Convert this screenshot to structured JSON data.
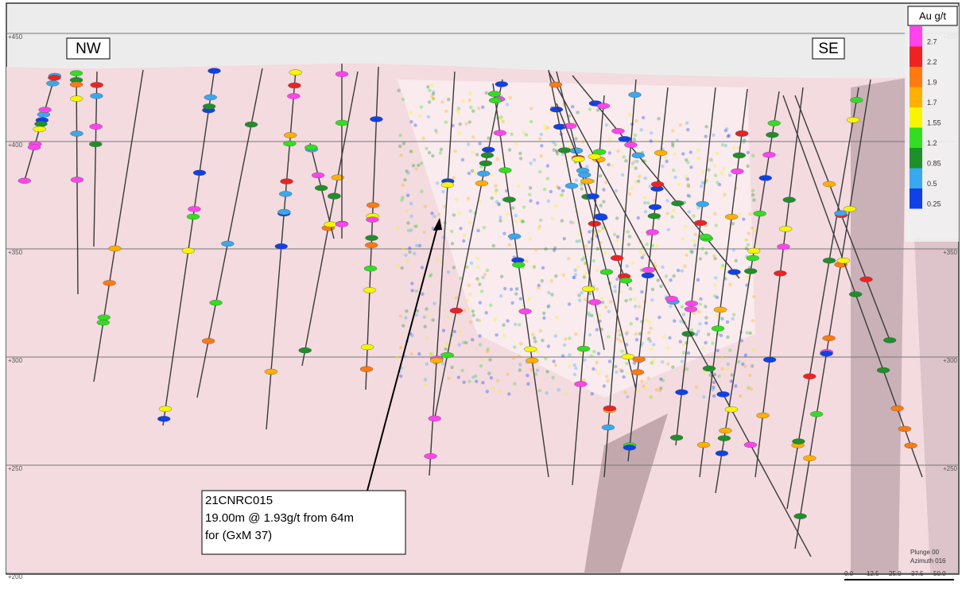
{
  "labels": {
    "nw": "NW",
    "se": "SE"
  },
  "elevations_left": [
    "+450",
    "+400",
    "+350",
    "+300",
    "+250",
    "+200"
  ],
  "elevations_right": [
    "+450",
    "+350",
    "+300",
    "+250"
  ],
  "legend": {
    "title": "Au g/t",
    "items": [
      {
        "label": "2.7",
        "color": "#ff44ee"
      },
      {
        "label": "2.2",
        "color": "#ee2222"
      },
      {
        "label": "1.9",
        "color": "#ff7a10"
      },
      {
        "label": "1.7",
        "color": "#ffb000"
      },
      {
        "label": "1.55",
        "color": "#f6f600"
      },
      {
        "label": "1.2",
        "color": "#33dd22"
      },
      {
        "label": "0.85",
        "color": "#1f8f2a"
      },
      {
        "label": "0.5",
        "color": "#3aa8ee"
      },
      {
        "label": "0.25",
        "color": "#1040e8"
      }
    ]
  },
  "annotation": {
    "lines": [
      "21CNRC015",
      "19.00m @ 1.93g/t from 64m",
      "for (GxM 37)"
    ]
  },
  "view": {
    "plunge": "Plunge 00",
    "azimuth": "Azimuth 016"
  },
  "scale": [
    "0.0",
    "12.5",
    "25.0",
    "37.5",
    "50.0"
  ]
}
